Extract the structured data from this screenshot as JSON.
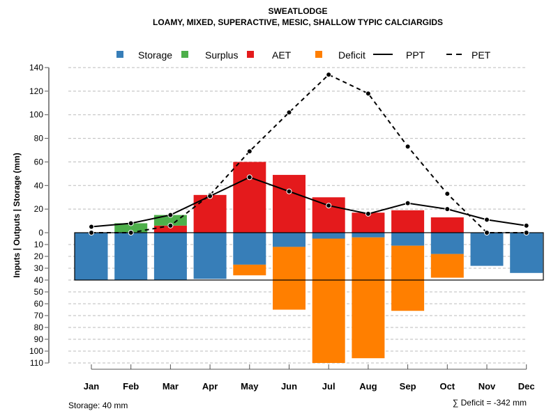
{
  "chart_data": {
    "type": "bar",
    "title": "SWEATLODGE",
    "subtitle": "LOAMY, MIXED, SUPERACTIVE, MESIC, SHALLOW TYPIC CALCIARGIDS",
    "ylabel": "Inputs | Outputs | Storage    (mm)",
    "xlabel": "",
    "categories": [
      "Jan",
      "Feb",
      "Mar",
      "Apr",
      "May",
      "Jun",
      "Jul",
      "Aug",
      "Sep",
      "Oct",
      "Nov",
      "Dec"
    ],
    "upper_ticks": [
      0,
      20,
      40,
      60,
      80,
      100,
      120,
      140
    ],
    "lower_ticks": [
      10,
      20,
      30,
      40,
      50,
      60,
      70,
      80,
      90,
      100,
      110
    ],
    "ylim_upper": [
      0,
      140
    ],
    "ylim_lower": [
      0,
      110
    ],
    "grid": true,
    "legend_position": "top",
    "legend": [
      {
        "label": "Storage",
        "kind": "box",
        "color": "#377EB8"
      },
      {
        "label": "Surplus",
        "kind": "box",
        "color": "#4DAF4A"
      },
      {
        "label": "AET",
        "kind": "box",
        "color": "#E41A1C"
      },
      {
        "label": "Deficit",
        "kind": "box",
        "color": "#FF7F00"
      },
      {
        "label": "PPT",
        "kind": "solid"
      },
      {
        "label": "PET",
        "kind": "dashed"
      }
    ],
    "series": [
      {
        "name": "AET",
        "values": [
          0,
          0,
          6,
          32,
          60,
          49,
          30,
          17,
          19,
          13,
          0,
          0
        ]
      },
      {
        "name": "Surplus",
        "values": [
          0,
          8,
          9,
          0,
          0,
          0,
          0,
          0,
          0,
          0,
          0,
          0
        ]
      },
      {
        "name": "Storage",
        "values": [
          40,
          40,
          40,
          39,
          27,
          12,
          5,
          4,
          11,
          18,
          28,
          34
        ]
      },
      {
        "name": "Deficit",
        "values": [
          0,
          0,
          0,
          0,
          9,
          53,
          105,
          102,
          55,
          20,
          0,
          0
        ]
      },
      {
        "name": "PPT",
        "values": [
          5,
          8,
          15,
          31,
          47,
          35,
          23,
          16,
          25,
          20,
          11,
          6
        ]
      },
      {
        "name": "PET",
        "values": [
          0,
          0,
          6,
          32,
          69,
          102,
          134,
          118,
          73,
          33,
          0,
          0
        ]
      }
    ],
    "storage_capacity": 40,
    "footer_left": "Storage: 40 mm",
    "footer_right": "∑ Deficit = -342 mm"
  }
}
